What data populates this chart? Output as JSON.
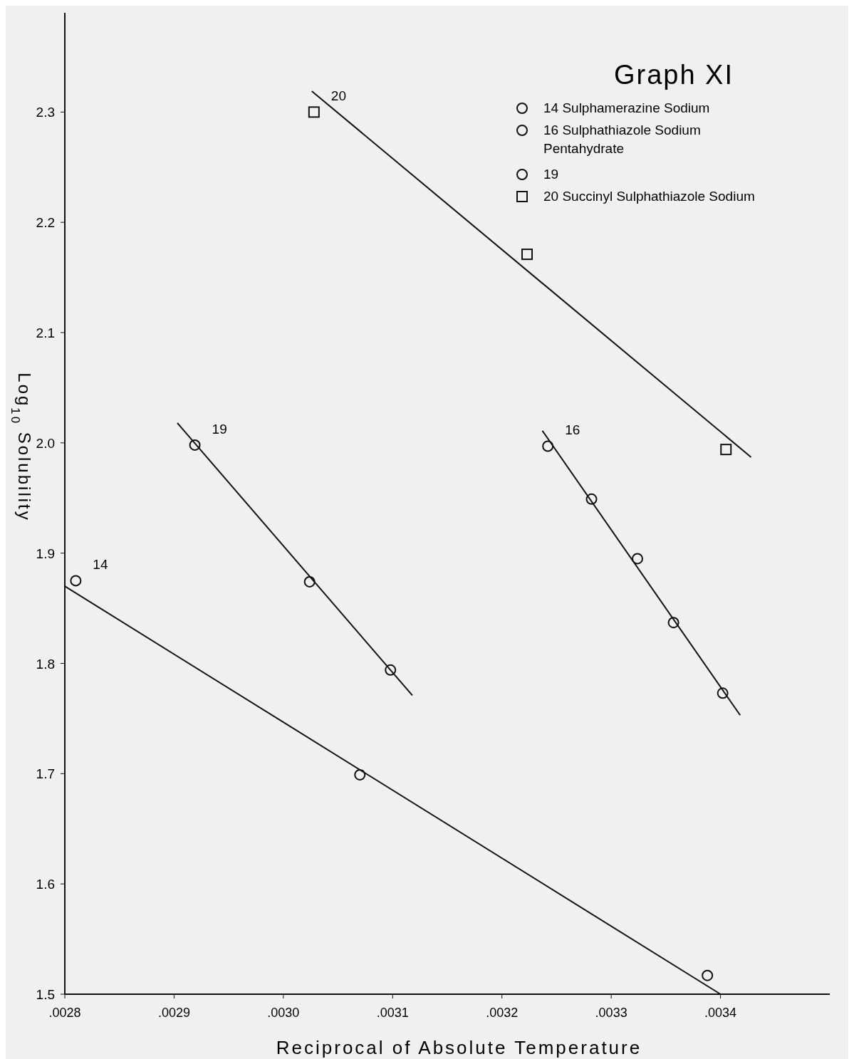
{
  "chart_data": {
    "type": "scatter",
    "title": "Graph XI",
    "xlabel": "Reciprocal of Absolute Temperature",
    "ylabel": "Log$_{10}$ Solubility",
    "xlim": [
      0.0028,
      0.0035
    ],
    "ylim": [
      1.5,
      2.39
    ],
    "xticks": [
      {
        "value": 0.0028,
        "label": ".0028"
      },
      {
        "value": 0.0029,
        "label": ".0029"
      },
      {
        "value": 0.003,
        "label": ".0030"
      },
      {
        "value": 0.0031,
        "label": ".0031"
      },
      {
        "value": 0.0032,
        "label": ".0032"
      },
      {
        "value": 0.0033,
        "label": ".0033"
      },
      {
        "value": 0.0034,
        "label": ".0034"
      }
    ],
    "yticks": [
      1.5,
      1.6,
      1.7,
      1.8,
      1.9,
      {
        "value": 2.0,
        "label": "2.0"
      },
      2.1,
      2.2,
      2.3
    ],
    "grid": false,
    "legend": "top right",
    "series": [
      {
        "name": "14 Sulphamerazine Sodium",
        "marker": "circle",
        "color": "#111111",
        "x": [
          0.00281,
          0.00307,
          0.003388
        ],
        "values": [
          1.875,
          1.699,
          1.517
        ]
      },
      {
        "name": "16 Sulphathiazole Sodium Pentahydrate",
        "marker": "circle",
        "color": "#111111",
        "x": [
          0.003242,
          0.003282,
          0.003324,
          0.003357,
          0.003402
        ],
        "values": [
          1.997,
          1.949,
          1.895,
          1.837,
          1.773
        ]
      },
      {
        "name": "19",
        "marker": "circle",
        "color": "#111111",
        "x": [
          0.002919,
          0.003024,
          0.003098
        ],
        "values": [
          1.998,
          1.874,
          1.794
        ]
      },
      {
        "name": "20 Succinyl Sulphathiazole Sodium",
        "marker": "square",
        "color": "#111111",
        "x": [
          0.003028,
          0.003223,
          0.003405
        ],
        "values": [
          2.3,
          2.171,
          1.994
        ]
      },
      {
        "type": "line",
        "color": "#111111",
        "x": [
          0.0028,
          0.0034
        ],
        "values": [
          1.87,
          1.5
        ]
      },
      {
        "type": "line",
        "color": "#111111",
        "x": [
          0.003237,
          0.003418
        ],
        "values": [
          2.011,
          1.753
        ]
      },
      {
        "type": "line",
        "color": "#111111",
        "x": [
          0.002903,
          0.003118
        ],
        "values": [
          2.018,
          1.771
        ]
      },
      {
        "type": "line",
        "color": "#111111",
        "x": [
          0.003026,
          0.003428
        ],
        "values": [
          2.319,
          1.987
        ]
      }
    ],
    "annotations": [
      "14",
      "16",
      "19",
      "20"
    ]
  }
}
